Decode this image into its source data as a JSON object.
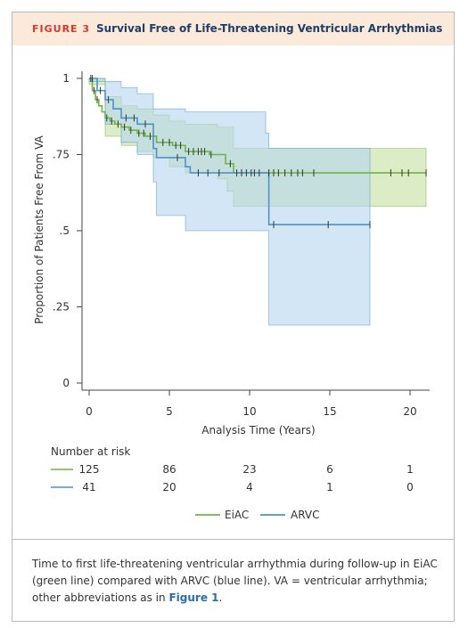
{
  "figure": {
    "label": "FIGURE 3",
    "title": "Survival Free of Life-Threatening Ventricular Arrhythmias"
  },
  "caption": {
    "text": "Time to first life-threatening ventricular arrhythmia during follow-up in EiAC (green line) compared with ARVC (blue line). VA = ventricular arrhythmia; other abbreviations as in ",
    "ref": "Figure 1",
    "end": "."
  },
  "colors": {
    "eiac": "#6fb544",
    "arvc": "#4f93c8",
    "eiac_band": "#cfe5b3",
    "arvc_band": "#b5d6ef"
  },
  "chart_data": {
    "type": "line",
    "title": "",
    "xlabel": "Analysis Time (Years)",
    "ylabel": "Proportion of Patients Free From VA",
    "xlim": [
      0,
      21
    ],
    "ylim": [
      0,
      1
    ],
    "xticks": [
      0,
      5,
      10,
      15,
      20
    ],
    "xtick_labels": [
      "0",
      "5",
      "10",
      "15",
      "20"
    ],
    "yticks": [
      0,
      0.25,
      0.5,
      0.75,
      1
    ],
    "ytick_labels": [
      "0",
      ".25",
      ".5",
      ".75",
      "1"
    ],
    "legend": {
      "position": "bottom",
      "entries": [
        "EiAC",
        "ARVC"
      ]
    },
    "series": [
      {
        "name": "EiAC",
        "color": "#6fb544",
        "steps": [
          [
            0,
            1
          ],
          [
            0.2,
            0.96
          ],
          [
            0.4,
            0.93
          ],
          [
            0.6,
            0.91
          ],
          [
            0.8,
            0.89
          ],
          [
            1.0,
            0.87
          ],
          [
            1.3,
            0.86
          ],
          [
            1.6,
            0.85
          ],
          [
            2.0,
            0.84
          ],
          [
            2.5,
            0.83
          ],
          [
            3.0,
            0.82
          ],
          [
            3.5,
            0.81
          ],
          [
            4.2,
            0.79
          ],
          [
            5.2,
            0.78
          ],
          [
            6.0,
            0.76
          ],
          [
            7.5,
            0.75
          ],
          [
            8.5,
            0.72
          ],
          [
            9.0,
            0.69
          ],
          [
            21,
            0.69
          ]
        ],
        "ci_upper": [
          [
            0,
            1
          ],
          [
            1,
            0.94
          ],
          [
            2,
            0.91
          ],
          [
            3,
            0.9
          ],
          [
            4,
            0.88
          ],
          [
            5,
            0.86
          ],
          [
            6,
            0.85
          ],
          [
            8,
            0.84
          ],
          [
            9,
            0.77
          ],
          [
            21,
            0.77
          ]
        ],
        "ci_lower": [
          [
            0,
            0.98
          ],
          [
            1,
            0.81
          ],
          [
            2,
            0.78
          ],
          [
            3,
            0.76
          ],
          [
            4,
            0.74
          ],
          [
            5,
            0.71
          ],
          [
            6,
            0.69
          ],
          [
            8,
            0.67
          ],
          [
            8.6,
            0.63
          ],
          [
            9,
            0.58
          ],
          [
            21,
            0.58
          ]
        ],
        "censor_times": [
          0.1,
          0.3,
          0.5,
          1.1,
          1.4,
          1.8,
          2.2,
          2.6,
          3.1,
          3.4,
          3.8,
          4.6,
          5.0,
          5.4,
          5.7,
          6.2,
          6.5,
          6.8,
          7.0,
          7.2,
          7.6,
          8.8,
          9.2,
          9.5,
          9.8,
          10.1,
          10.3,
          10.6,
          11.2,
          11.5,
          11.8,
          12.2,
          12.6,
          13.0,
          13.3,
          14.0,
          18.8,
          19.5,
          19.9,
          21.0
        ]
      },
      {
        "name": "ARVC",
        "color": "#4f93c8",
        "steps": [
          [
            0,
            1
          ],
          [
            0.5,
            0.96
          ],
          [
            1.0,
            0.93
          ],
          [
            1.5,
            0.9
          ],
          [
            2.0,
            0.87
          ],
          [
            3.0,
            0.85
          ],
          [
            4.0,
            0.77
          ],
          [
            4.2,
            0.74
          ],
          [
            6.0,
            0.71
          ],
          [
            6.3,
            0.69
          ],
          [
            11.2,
            0.52
          ],
          [
            17.5,
            0.52
          ]
        ],
        "ci_upper": [
          [
            0,
            1
          ],
          [
            1,
            0.99
          ],
          [
            2,
            0.97
          ],
          [
            3,
            0.95
          ],
          [
            4,
            0.9
          ],
          [
            6,
            0.89
          ],
          [
            11,
            0.82
          ],
          [
            11.2,
            0.77
          ],
          [
            17.5,
            0.77
          ]
        ],
        "ci_lower": [
          [
            0,
            0.99
          ],
          [
            1,
            0.85
          ],
          [
            2,
            0.79
          ],
          [
            3,
            0.75
          ],
          [
            4,
            0.66
          ],
          [
            4.2,
            0.55
          ],
          [
            6,
            0.5
          ],
          [
            11.2,
            0.19
          ],
          [
            17.5,
            0.19
          ]
        ],
        "censor_times": [
          0.2,
          0.7,
          1.2,
          2.3,
          2.8,
          3.5,
          5.5,
          6.8,
          7.4,
          8.1,
          11.5,
          14.9,
          17.5
        ]
      }
    ]
  },
  "risk_table": {
    "title": "Number at risk",
    "rows": [
      {
        "name": "EiAC",
        "values": [
          "125",
          "86",
          "23",
          "6",
          "1"
        ]
      },
      {
        "name": "ARVC",
        "values": [
          "41",
          "20",
          "4",
          "1",
          "0"
        ]
      }
    ]
  }
}
